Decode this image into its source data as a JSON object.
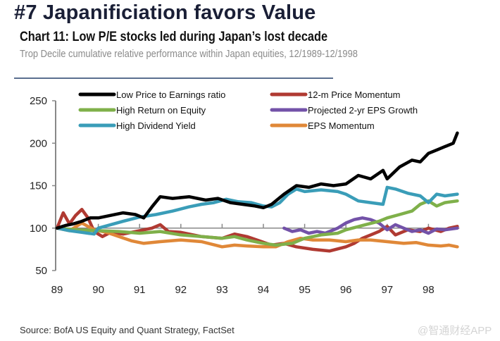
{
  "header": {
    "title": "#7 Japanificiation favors Value",
    "subtitle": "Chart 11: Low P/E stocks led during Japan’s lost decade",
    "description": "Trop Decile cumulative relative performance within Japan equities, 12/1989-12/1998"
  },
  "footer": {
    "source": "Source: BofA US Equity and Quant Strategy, FactSet",
    "watermark": "@智通财经APP"
  },
  "chart_data": {
    "type": "line",
    "title": "Chart 11: Low P/E stocks led during Japan’s lost decade",
    "xlabel": "",
    "ylabel": "",
    "ylim": [
      50,
      250
    ],
    "xlim": [
      1989,
      1999
    ],
    "yticks": [
      50,
      100,
      150,
      200,
      250
    ],
    "xtick_labels": [
      "89",
      "90",
      "91",
      "92",
      "93",
      "94",
      "95",
      "96",
      "97",
      "98"
    ],
    "baseline": 100,
    "grid": false,
    "legend_position": "top",
    "series": [
      {
        "name": "Low Price to Earnings ratio",
        "color": "#000000",
        "x": [
          1989.0,
          1989.2,
          1989.4,
          1989.6,
          1989.8,
          1990.0,
          1990.3,
          1990.6,
          1990.9,
          1991.1,
          1991.3,
          1991.5,
          1991.8,
          1992.2,
          1992.6,
          1992.9,
          1993.2,
          1993.5,
          1993.8,
          1994.0,
          1994.2,
          1994.5,
          1994.8,
          1995.1,
          1995.4,
          1995.7,
          1996.0,
          1996.3,
          1996.6,
          1996.9,
          1997.0,
          1997.3,
          1997.6,
          1997.8,
          1998.0,
          1998.2,
          1998.4,
          1998.6,
          1998.7
        ],
        "y": [
          100,
          103,
          105,
          108,
          112,
          112,
          115,
          118,
          116,
          112,
          125,
          137,
          135,
          137,
          133,
          135,
          130,
          128,
          126,
          124,
          128,
          140,
          150,
          148,
          152,
          150,
          152,
          162,
          158,
          168,
          158,
          172,
          180,
          178,
          188,
          192,
          196,
          200,
          212
        ]
      },
      {
        "name": "High Return on Equity",
        "color": "#7fb04a",
        "x": [
          1989.0,
          1989.5,
          1990.0,
          1990.5,
          1991.0,
          1991.5,
          1992.0,
          1992.5,
          1993.0,
          1993.3,
          1993.6,
          1994.0,
          1994.3,
          1994.7,
          1995.0,
          1995.4,
          1995.8,
          1996.0,
          1996.4,
          1996.8,
          1997.0,
          1997.3,
          1997.6,
          1997.8,
          1998.0,
          1998.2,
          1998.4,
          1998.7
        ],
        "y": [
          100,
          98,
          97,
          96,
          94,
          96,
          92,
          90,
          88,
          90,
          86,
          82,
          80,
          82,
          88,
          92,
          94,
          98,
          103,
          108,
          112,
          116,
          120,
          128,
          132,
          126,
          130,
          132
        ]
      },
      {
        "name": "High Dividend Yield",
        "color": "#3a9db8",
        "x": [
          1989.0,
          1989.3,
          1989.6,
          1989.9,
          1990.0,
          1990.3,
          1990.6,
          1991.0,
          1991.4,
          1991.8,
          1992.2,
          1992.5,
          1992.8,
          1993.1,
          1993.4,
          1993.7,
          1994.0,
          1994.2,
          1994.4,
          1994.6,
          1994.8,
          1995.0,
          1995.4,
          1995.8,
          1996.0,
          1996.3,
          1996.6,
          1996.9,
          1997.0,
          1997.2,
          1997.5,
          1997.8,
          1998.0,
          1998.2,
          1998.4,
          1998.7
        ],
        "y": [
          100,
          97,
          95,
          93,
          100,
          104,
          108,
          113,
          116,
          120,
          125,
          128,
          130,
          134,
          131,
          130,
          126,
          125,
          130,
          140,
          146,
          143,
          145,
          143,
          140,
          132,
          130,
          128,
          148,
          146,
          141,
          138,
          130,
          140,
          138,
          140
        ]
      },
      {
        "name": "12-m Price Momentum",
        "color": "#b03a32",
        "x": [
          1989.0,
          1989.15,
          1989.3,
          1989.45,
          1989.6,
          1989.75,
          1989.9,
          1990.1,
          1990.3,
          1990.6,
          1991.0,
          1991.3,
          1991.5,
          1991.7,
          1992.0,
          1992.5,
          1993.0,
          1993.3,
          1993.6,
          1993.9,
          1994.2,
          1994.5,
          1994.8,
          1995.2,
          1995.6,
          1996.0,
          1996.2,
          1996.4,
          1996.6,
          1996.8,
          1997.0,
          1997.2,
          1997.5,
          1997.8,
          1998.0,
          1998.3,
          1998.5,
          1998.7
        ],
        "y": [
          100,
          118,
          105,
          115,
          122,
          112,
          96,
          90,
          95,
          93,
          97,
          100,
          104,
          96,
          95,
          90,
          88,
          93,
          90,
          85,
          80,
          82,
          78,
          75,
          73,
          78,
          82,
          88,
          92,
          96,
          102,
          92,
          98,
          96,
          100,
          96,
          100,
          102
        ]
      },
      {
        "name": "Projected 2-yr EPS Growth",
        "color": "#7352a8",
        "x": [
          1994.5,
          1994.7,
          1994.9,
          1995.1,
          1995.3,
          1995.5,
          1995.8,
          1996.0,
          1996.2,
          1996.4,
          1996.6,
          1996.8,
          1997.0,
          1997.2,
          1997.4,
          1997.6,
          1997.8,
          1998.0,
          1998.2,
          1998.4,
          1998.7
        ],
        "y": [
          100,
          96,
          98,
          94,
          96,
          94,
          100,
          106,
          110,
          112,
          110,
          106,
          98,
          104,
          100,
          96,
          98,
          94,
          99,
          98,
          100
        ]
      },
      {
        "name": "EPS Momentum",
        "color": "#e08838",
        "x": [
          1989.0,
          1989.3,
          1989.6,
          1989.9,
          1990.2,
          1990.5,
          1990.8,
          1991.1,
          1991.5,
          1992.0,
          1992.5,
          1993.0,
          1993.3,
          1993.6,
          1994.0,
          1994.3,
          1994.6,
          1994.9,
          1995.2,
          1995.6,
          1996.0,
          1996.3,
          1996.6,
          1997.0,
          1997.4,
          1997.7,
          1998.0,
          1998.3,
          1998.5,
          1998.7
        ],
        "y": [
          100,
          97,
          106,
          98,
          95,
          90,
          85,
          82,
          84,
          86,
          84,
          78,
          80,
          79,
          78,
          78,
          84,
          88,
          86,
          86,
          84,
          86,
          86,
          84,
          82,
          83,
          80,
          79,
          80,
          78
        ]
      }
    ],
    "legend": [
      {
        "label": "Low Price to Earnings ratio",
        "color": "#000000"
      },
      {
        "label": "12-m Price Momentum",
        "color": "#b03a32"
      },
      {
        "label": "High Return on Equity",
        "color": "#7fb04a"
      },
      {
        "label": "Projected 2-yr EPS Growth",
        "color": "#7352a8"
      },
      {
        "label": "High Dividend Yield",
        "color": "#3a9db8"
      },
      {
        "label": "EPS Momentum",
        "color": "#e08838"
      }
    ]
  }
}
